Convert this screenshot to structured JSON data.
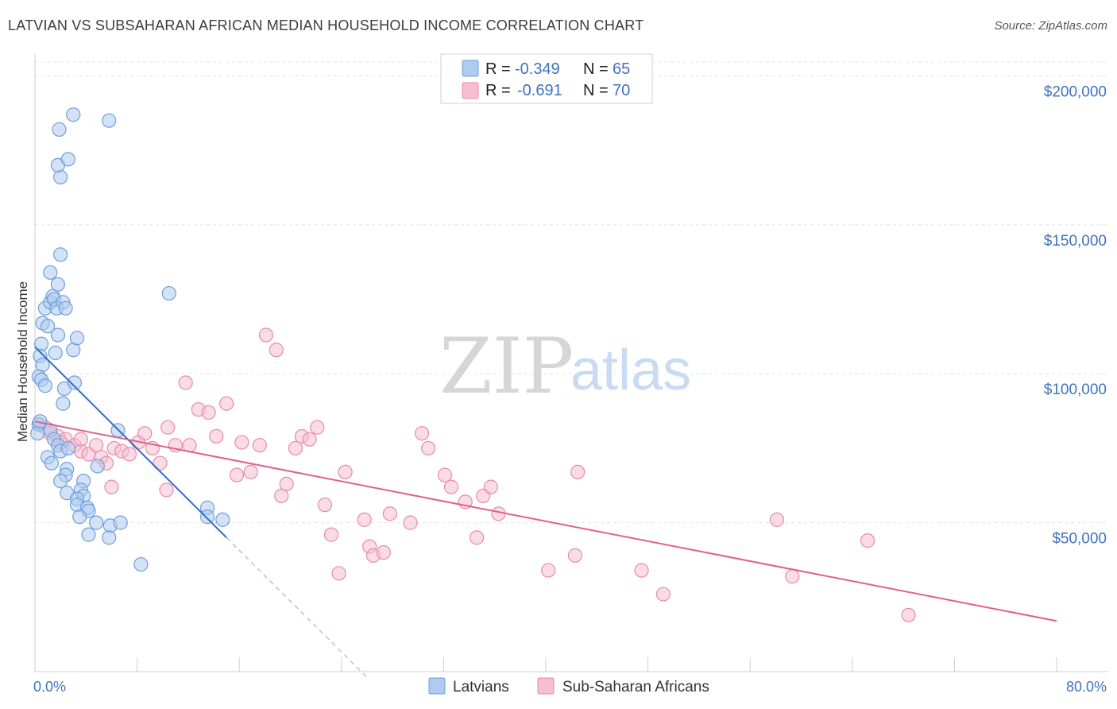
{
  "header": {
    "title": "LATVIAN VS SUBSAHARAN AFRICAN MEDIAN HOUSEHOLD INCOME CORRELATION CHART",
    "source": "Source: ZipAtlas.com"
  },
  "watermark": {
    "zip": "ZIP",
    "atlas": "atlas"
  },
  "colors": {
    "latvians_fill": "#aecbf0",
    "latvians_stroke": "#6e9fd9",
    "latvians_line": "#2f6fcc",
    "ssa_fill": "#f6bfd0",
    "ssa_stroke": "#e88aa9",
    "ssa_line": "#e0608c",
    "tick_text": "#3f72c0",
    "grid": "#e3e3e3"
  },
  "legend": {
    "rows": [
      {
        "r_label": "R =",
        "r_value": "-0.349",
        "n_label": "N =",
        "n_value": "65"
      },
      {
        "r_label": "R =",
        "r_value": "-0.691",
        "n_label": "N =",
        "n_value": "70"
      }
    ]
  },
  "bottom_legend": [
    "Latvians",
    "Sub-Saharan Africans"
  ],
  "chart_data": {
    "type": "scatter",
    "ylabel": "Median Household Income",
    "xlabel": "",
    "x_tick_labels": [
      "0.0%",
      "80.0%"
    ],
    "y_tick_labels": [
      "$200,000",
      "$150,000",
      "$100,000",
      "$50,000"
    ],
    "y_ticks": [
      200000,
      150000,
      100000,
      50000
    ],
    "xlim": [
      0,
      80
    ],
    "ylim": [
      0,
      210000
    ],
    "grid": true,
    "legend_placement": "top-center",
    "series": [
      {
        "name": "Latvians",
        "trend": {
          "x0": 0.0,
          "y0": 109000,
          "x1": 15.0,
          "y1": 45000,
          "dash_x1": 26.0
        },
        "points": [
          [
            0.3,
            83000
          ],
          [
            0.5,
            110000
          ],
          [
            0.4,
            106000
          ],
          [
            0.6,
            103000
          ],
          [
            0.3,
            99000
          ],
          [
            0.5,
            98000
          ],
          [
            0.8,
            96000
          ],
          [
            0.6,
            117000
          ],
          [
            1.0,
            116000
          ],
          [
            0.8,
            122000
          ],
          [
            1.2,
            124000
          ],
          [
            1.4,
            126000
          ],
          [
            1.5,
            125000
          ],
          [
            1.7,
            122000
          ],
          [
            1.2,
            134000
          ],
          [
            1.8,
            130000
          ],
          [
            2.2,
            124000
          ],
          [
            2.4,
            122000
          ],
          [
            1.8,
            113000
          ],
          [
            1.6,
            107000
          ],
          [
            2.2,
            90000
          ],
          [
            2.3,
            95000
          ],
          [
            3.0,
            108000
          ],
          [
            3.1,
            97000
          ],
          [
            3.3,
            112000
          ],
          [
            2.0,
            140000
          ],
          [
            2.0,
            166000
          ],
          [
            1.8,
            170000
          ],
          [
            1.9,
            182000
          ],
          [
            3.0,
            187000
          ],
          [
            2.6,
            172000
          ],
          [
            5.8,
            185000
          ],
          [
            10.5,
            127000
          ],
          [
            1.2,
            81000
          ],
          [
            1.5,
            78000
          ],
          [
            1.8,
            76000
          ],
          [
            2.0,
            74000
          ],
          [
            2.6,
            75000
          ],
          [
            1.0,
            72000
          ],
          [
            1.3,
            70000
          ],
          [
            2.5,
            68000
          ],
          [
            2.4,
            66000
          ],
          [
            2.0,
            64000
          ],
          [
            3.8,
            64000
          ],
          [
            2.5,
            60000
          ],
          [
            3.6,
            61000
          ],
          [
            3.8,
            59000
          ],
          [
            3.3,
            58000
          ],
          [
            3.3,
            56000
          ],
          [
            4.1,
            55000
          ],
          [
            4.2,
            54000
          ],
          [
            4.9,
            69000
          ],
          [
            6.5,
            81000
          ],
          [
            3.5,
            52000
          ],
          [
            4.8,
            50000
          ],
          [
            5.9,
            49000
          ],
          [
            6.7,
            50000
          ],
          [
            4.2,
            46000
          ],
          [
            5.8,
            45000
          ],
          [
            8.3,
            36000
          ],
          [
            13.5,
            55000
          ],
          [
            13.5,
            52000
          ],
          [
            14.7,
            51000
          ],
          [
            0.2,
            80000
          ],
          [
            0.4,
            84000
          ]
        ]
      },
      {
        "name": "Sub-Saharan Africans",
        "trend": {
          "x0": 0.0,
          "y0": 84000,
          "x1": 80.0,
          "y1": 17000
        },
        "points": [
          [
            0.3,
            83000
          ],
          [
            0.8,
            82000
          ],
          [
            1.2,
            80000
          ],
          [
            1.8,
            79000
          ],
          [
            2.4,
            78000
          ],
          [
            3.1,
            76000
          ],
          [
            3.6,
            74000
          ],
          [
            4.2,
            73000
          ],
          [
            4.8,
            76000
          ],
          [
            5.2,
            72000
          ],
          [
            5.6,
            70000
          ],
          [
            6.2,
            75000
          ],
          [
            6.8,
            74000
          ],
          [
            7.4,
            73000
          ],
          [
            8.1,
            77000
          ],
          [
            8.6,
            80000
          ],
          [
            9.2,
            75000
          ],
          [
            9.8,
            70000
          ],
          [
            10.4,
            82000
          ],
          [
            11.0,
            76000
          ],
          [
            11.8,
            97000
          ],
          [
            12.1,
            76000
          ],
          [
            12.8,
            88000
          ],
          [
            13.6,
            87000
          ],
          [
            14.2,
            79000
          ],
          [
            15.0,
            90000
          ],
          [
            15.8,
            66000
          ],
          [
            16.2,
            77000
          ],
          [
            16.9,
            67000
          ],
          [
            17.6,
            76000
          ],
          [
            18.1,
            113000
          ],
          [
            18.9,
            108000
          ],
          [
            19.3,
            59000
          ],
          [
            19.7,
            63000
          ],
          [
            20.4,
            75000
          ],
          [
            20.9,
            79000
          ],
          [
            21.5,
            78000
          ],
          [
            22.1,
            82000
          ],
          [
            22.7,
            56000
          ],
          [
            23.2,
            46000
          ],
          [
            23.8,
            33000
          ],
          [
            24.3,
            67000
          ],
          [
            25.8,
            51000
          ],
          [
            26.2,
            42000
          ],
          [
            26.5,
            39000
          ],
          [
            27.3,
            40000
          ],
          [
            27.8,
            53000
          ],
          [
            29.4,
            50000
          ],
          [
            30.3,
            80000
          ],
          [
            30.8,
            75000
          ],
          [
            32.1,
            66000
          ],
          [
            32.6,
            62000
          ],
          [
            33.7,
            57000
          ],
          [
            34.6,
            45000
          ],
          [
            35.1,
            59000
          ],
          [
            35.7,
            62000
          ],
          [
            36.3,
            53000
          ],
          [
            40.2,
            34000
          ],
          [
            42.3,
            39000
          ],
          [
            42.5,
            67000
          ],
          [
            47.5,
            34000
          ],
          [
            49.2,
            26000
          ],
          [
            58.1,
            51000
          ],
          [
            59.3,
            32000
          ],
          [
            65.2,
            44000
          ],
          [
            68.4,
            19000
          ],
          [
            2.0,
            77000
          ],
          [
            3.6,
            78000
          ],
          [
            6.0,
            62000
          ],
          [
            10.3,
            61000
          ]
        ]
      }
    ]
  }
}
